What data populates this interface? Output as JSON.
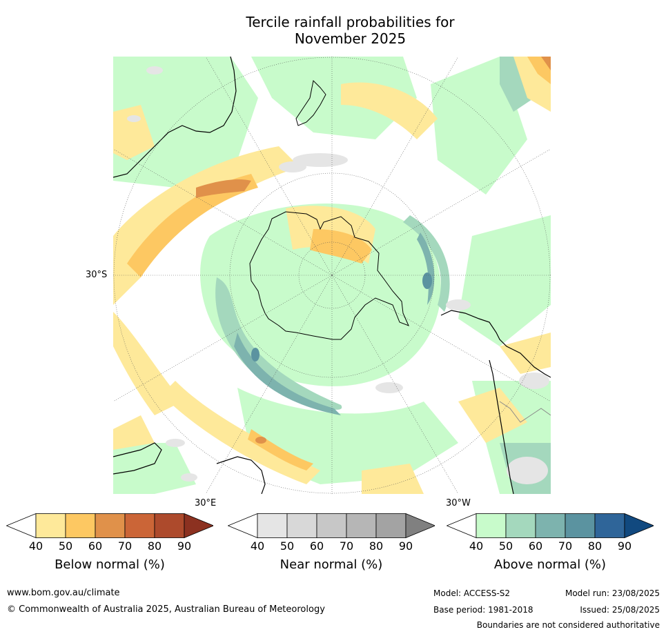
{
  "title_line1": "Tercile rainfall probabilities for",
  "title_line2": "November 2025",
  "map": {
    "lat_label": "30°S",
    "lon_label_left": "30°E",
    "lon_label_right": "30°W"
  },
  "legend": {
    "ticks": [
      "40",
      "50",
      "60",
      "70",
      "80",
      "90"
    ],
    "below": {
      "label": "Below normal (%)",
      "colors": [
        "#ffffff",
        "#fee99a",
        "#fdc862",
        "#e0914a",
        "#cb6537",
        "#ad4a2c",
        "#8c3120"
      ]
    },
    "near": {
      "label": "Near normal (%)",
      "colors": [
        "#ffffff",
        "#e5e5e5",
        "#d8d8d8",
        "#c7c7c7",
        "#b6b6b6",
        "#a3a3a3",
        "#808080"
      ]
    },
    "above": {
      "label": "Above normal (%)",
      "colors": [
        "#ffffff",
        "#c8fbcb",
        "#a4d8bd",
        "#7db3ae",
        "#5b93a0",
        "#2f6599",
        "#11497f"
      ]
    }
  },
  "footer": {
    "url": "www.bom.gov.au/climate",
    "copyright": "© Commonwealth of Australia 2025, Australian Bureau of Meteorology",
    "model": "Model: ACCESS-S2",
    "base_period": "Base period: 1981-2018",
    "model_run": "Model run: 23/08/2025",
    "issued": "Issued: 25/08/2025",
    "disclaimer": "Boundaries are not considered authoritative"
  }
}
